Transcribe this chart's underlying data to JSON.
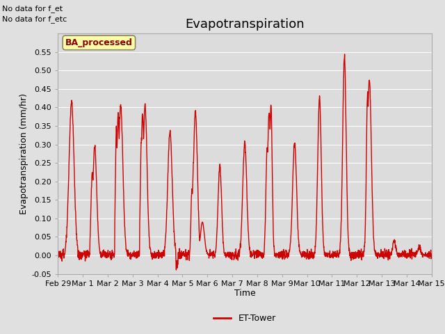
{
  "title": "Evapotranspiration",
  "xlabel": "Time",
  "ylabel": "Evapotranspiration (mm/hr)",
  "ylim": [
    -0.05,
    0.6
  ],
  "yticks": [
    -0.05,
    0.0,
    0.05,
    0.1,
    0.15,
    0.2,
    0.25,
    0.3,
    0.35,
    0.4,
    0.45,
    0.5,
    0.55
  ],
  "xtick_labels": [
    "Feb 29",
    "Mar 1",
    "Mar 2",
    "Mar 3",
    "Mar 4",
    "Mar 5",
    "Mar 6",
    "Mar 7",
    "Mar 8",
    "Mar 9",
    "Mar 10",
    "Mar 11",
    "Mar 12",
    "Mar 13",
    "Mar 14",
    "Mar 15"
  ],
  "line_color": "#cc0000",
  "line_width": 1.0,
  "bg_color": "#e0e0e0",
  "plot_bg_color": "#dcdcdc",
  "annotation_text1": "No data for f_et",
  "annotation_text2": "No data for f_etc",
  "box_label": "BA_processed",
  "legend_label": "ET-Tower",
  "title_fontsize": 13,
  "label_fontsize": 9,
  "tick_fontsize": 8,
  "grid_color": "#ffffff",
  "spine_color": "#aaaaaa",
  "box_facecolor": "#ffffaa",
  "box_edgecolor": "#888866",
  "box_text_color": "#880000"
}
